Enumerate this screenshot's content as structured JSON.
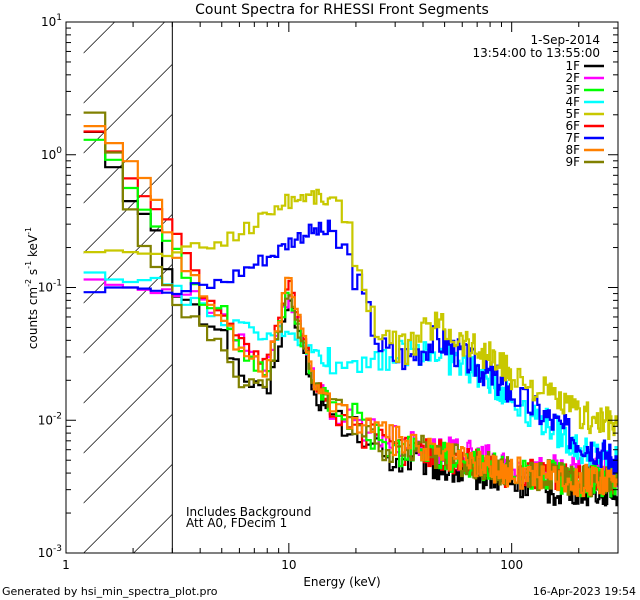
{
  "chart_data": {
    "type": "line",
    "title": "Count Spectra for RHESSI Front Segments",
    "xlabel": "Energy (keV)",
    "ylabel_prefix": "counts cm",
    "ylabel_sup1": "-2",
    "ylabel_mid1": " s",
    "ylabel_sup2": "-1",
    "ylabel_mid2": " keV",
    "ylabel_sup3": "-1",
    "xscale": "log",
    "yscale": "log",
    "xlim": [
      1,
      300
    ],
    "ylim": [
      0.001,
      10
    ],
    "x_major_ticks": [
      {
        "value": 1,
        "label": "1"
      },
      {
        "value": 10,
        "label": "10"
      },
      {
        "value": 100,
        "label": "100"
      }
    ],
    "y_major_ticks": [
      {
        "value": 0.001,
        "base": "10",
        "exp": "-3"
      },
      {
        "value": 0.01,
        "base": "10",
        "exp": "-2"
      },
      {
        "value": 0.1,
        "base": "10",
        "exp": "-1"
      },
      {
        "value": 1,
        "base": "10",
        "exp": "0"
      },
      {
        "value": 10,
        "base": "10",
        "exp": "1"
      }
    ],
    "excluded_region": {
      "x_from": 1.2,
      "x_to": 3.0,
      "style": "hatched"
    },
    "annotations": {
      "date": "1-Sep-2014",
      "time_range": "13:54:00 to 13:55:00",
      "note_line1": "Includes Background",
      "note_line2": "Att A0, FDecim 1",
      "footer_left": "Generated by hsi_min_spectra_plot.pro",
      "footer_right": "16-Apr-2023 19:54"
    },
    "legend_position": "top-right",
    "series": [
      {
        "name": "1F",
        "color": "#000000",
        "points": [
          [
            1.2,
            1.7
          ],
          [
            1.5,
            1.3
          ],
          [
            1.8,
            0.5
          ],
          [
            2.1,
            0.4
          ],
          [
            2.5,
            0.3
          ],
          [
            3,
            0.1
          ],
          [
            4,
            0.06
          ],
          [
            5,
            0.05
          ],
          [
            6,
            0.022
          ],
          [
            8,
            0.015
          ],
          [
            10,
            0.08
          ],
          [
            11,
            0.05
          ],
          [
            13,
            0.015
          ],
          [
            16,
            0.01
          ],
          [
            20,
            0.008
          ],
          [
            25,
            0.006
          ],
          [
            30,
            0.005
          ],
          [
            40,
            0.005
          ],
          [
            60,
            0.004
          ],
          [
            80,
            0.004
          ],
          [
            100,
            0.0035
          ],
          [
            150,
            0.003
          ],
          [
            200,
            0.003
          ],
          [
            300,
            0.003
          ]
        ]
      },
      {
        "name": "2F",
        "color": "#ff00ff",
        "points": [
          [
            1.2,
            0.12
          ],
          [
            1.5,
            0.11
          ],
          [
            1.8,
            0.1
          ],
          [
            2.1,
            0.1
          ],
          [
            2.5,
            0.09
          ],
          [
            3,
            0.1
          ],
          [
            4,
            0.08
          ],
          [
            5,
            0.06
          ],
          [
            6,
            0.04
          ],
          [
            8,
            0.025
          ],
          [
            10,
            0.09
          ],
          [
            11,
            0.06
          ],
          [
            13,
            0.02
          ],
          [
            16,
            0.012
          ],
          [
            20,
            0.01
          ],
          [
            25,
            0.008
          ],
          [
            30,
            0.007
          ],
          [
            40,
            0.006
          ],
          [
            60,
            0.0055
          ],
          [
            80,
            0.005
          ],
          [
            100,
            0.0045
          ],
          [
            150,
            0.0042
          ],
          [
            200,
            0.004
          ],
          [
            300,
            0.004
          ]
        ]
      },
      {
        "name": "3F",
        "color": "#00ff00",
        "points": [
          [
            1.2,
            1.4
          ],
          [
            1.5,
            1.2
          ],
          [
            1.8,
            0.7
          ],
          [
            2.1,
            0.45
          ],
          [
            2.5,
            0.3
          ],
          [
            3,
            0.2
          ],
          [
            4,
            0.08
          ],
          [
            5,
            0.07
          ],
          [
            6,
            0.035
          ],
          [
            8,
            0.022
          ],
          [
            10,
            0.1
          ],
          [
            11,
            0.05
          ],
          [
            13,
            0.02
          ],
          [
            16,
            0.012
          ],
          [
            20,
            0.01
          ],
          [
            25,
            0.007
          ],
          [
            30,
            0.006
          ],
          [
            40,
            0.0055
          ],
          [
            60,
            0.005
          ],
          [
            80,
            0.0045
          ],
          [
            100,
            0.004
          ],
          [
            150,
            0.0038
          ],
          [
            200,
            0.0035
          ],
          [
            300,
            0.0035
          ]
        ]
      },
      {
        "name": "4F",
        "color": "#00ffff",
        "points": [
          [
            1.2,
            0.14
          ],
          [
            1.5,
            0.12
          ],
          [
            1.8,
            0.11
          ],
          [
            2.1,
            0.11
          ],
          [
            2.5,
            0.12
          ],
          [
            3,
            0.1
          ],
          [
            4,
            0.07
          ],
          [
            5,
            0.06
          ],
          [
            6,
            0.05
          ],
          [
            8,
            0.04
          ],
          [
            10,
            0.05
          ],
          [
            12,
            0.035
          ],
          [
            14,
            0.03
          ],
          [
            17,
            0.025
          ],
          [
            20,
            0.028
          ],
          [
            25,
            0.032
          ],
          [
            30,
            0.03
          ],
          [
            40,
            0.035
          ],
          [
            50,
            0.03
          ],
          [
            60,
            0.026
          ],
          [
            80,
            0.02
          ],
          [
            100,
            0.015
          ],
          [
            150,
            0.009
          ],
          [
            200,
            0.006
          ],
          [
            300,
            0.005
          ]
        ]
      },
      {
        "name": "5F",
        "color": "#c8c800",
        "points": [
          [
            1.2,
            0.18
          ],
          [
            1.5,
            0.19
          ],
          [
            1.8,
            0.19
          ],
          [
            2.1,
            0.18
          ],
          [
            2.5,
            0.18
          ],
          [
            3,
            0.17
          ],
          [
            4,
            0.2
          ],
          [
            5,
            0.22
          ],
          [
            6,
            0.26
          ],
          [
            7,
            0.3
          ],
          [
            8,
            0.36
          ],
          [
            9,
            0.42
          ],
          [
            10,
            0.45
          ],
          [
            12,
            0.5
          ],
          [
            14,
            0.48
          ],
          [
            16,
            0.42
          ],
          [
            18,
            0.3
          ],
          [
            20,
            0.18
          ],
          [
            23,
            0.08
          ],
          [
            26,
            0.04
          ],
          [
            30,
            0.035
          ],
          [
            35,
            0.035
          ],
          [
            40,
            0.045
          ],
          [
            45,
            0.055
          ],
          [
            50,
            0.05
          ],
          [
            60,
            0.04
          ],
          [
            80,
            0.03
          ],
          [
            100,
            0.022
          ],
          [
            150,
            0.015
          ],
          [
            200,
            0.011
          ],
          [
            300,
            0.009
          ]
        ]
      },
      {
        "name": "6F",
        "color": "#ff0000",
        "points": [
          [
            1.2,
            1.6
          ],
          [
            1.5,
            1.4
          ],
          [
            1.8,
            0.8
          ],
          [
            2.1,
            0.55
          ],
          [
            2.5,
            0.4
          ],
          [
            3,
            0.3
          ],
          [
            4,
            0.1
          ],
          [
            5,
            0.07
          ],
          [
            6,
            0.04
          ],
          [
            8,
            0.025
          ],
          [
            10,
            0.11
          ],
          [
            11,
            0.06
          ],
          [
            13,
            0.02
          ],
          [
            16,
            0.012
          ],
          [
            20,
            0.009
          ],
          [
            25,
            0.007
          ],
          [
            30,
            0.006
          ],
          [
            40,
            0.006
          ],
          [
            60,
            0.005
          ],
          [
            80,
            0.0045
          ],
          [
            100,
            0.004
          ],
          [
            150,
            0.0038
          ],
          [
            200,
            0.0035
          ],
          [
            300,
            0.0035
          ]
        ]
      },
      {
        "name": "7F",
        "color": "#0000ff",
        "points": [
          [
            1.2,
            0.085
          ],
          [
            1.5,
            0.1
          ],
          [
            1.8,
            0.1
          ],
          [
            2.1,
            0.1
          ],
          [
            2.5,
            0.095
          ],
          [
            3,
            0.09
          ],
          [
            4,
            0.1
          ],
          [
            5,
            0.11
          ],
          [
            6,
            0.13
          ],
          [
            7,
            0.15
          ],
          [
            8,
            0.17
          ],
          [
            9,
            0.19
          ],
          [
            10,
            0.22
          ],
          [
            12,
            0.26
          ],
          [
            14,
            0.27
          ],
          [
            16,
            0.23
          ],
          [
            18,
            0.19
          ],
          [
            20,
            0.12
          ],
          [
            23,
            0.06
          ],
          [
            26,
            0.035
          ],
          [
            30,
            0.03
          ],
          [
            35,
            0.03
          ],
          [
            40,
            0.035
          ],
          [
            45,
            0.04
          ],
          [
            50,
            0.038
          ],
          [
            60,
            0.03
          ],
          [
            80,
            0.022
          ],
          [
            100,
            0.016
          ],
          [
            150,
            0.01
          ],
          [
            200,
            0.007
          ],
          [
            300,
            0.005
          ]
        ]
      },
      {
        "name": "8F",
        "color": "#ff8000",
        "points": [
          [
            1.2,
            1.8
          ],
          [
            1.5,
            1.5
          ],
          [
            1.8,
            1.0
          ],
          [
            2.1,
            0.8
          ],
          [
            2.5,
            0.5
          ],
          [
            3,
            0.2
          ],
          [
            4,
            0.1
          ],
          [
            5,
            0.06
          ],
          [
            6,
            0.035
          ],
          [
            8,
            0.022
          ],
          [
            10,
            0.13
          ],
          [
            11,
            0.06
          ],
          [
            13,
            0.02
          ],
          [
            16,
            0.013
          ],
          [
            20,
            0.01
          ],
          [
            25,
            0.008
          ],
          [
            30,
            0.007
          ],
          [
            40,
            0.006
          ],
          [
            60,
            0.005
          ],
          [
            80,
            0.0045
          ],
          [
            100,
            0.004
          ],
          [
            150,
            0.004
          ],
          [
            200,
            0.0035
          ],
          [
            300,
            0.0035
          ]
        ]
      },
      {
        "name": "9F",
        "color": "#808000",
        "points": [
          [
            1.2,
            2.4
          ],
          [
            1.5,
            1.8
          ],
          [
            1.8,
            0.6
          ],
          [
            2.1,
            0.25
          ],
          [
            2.5,
            0.15
          ],
          [
            3,
            0.09
          ],
          [
            4,
            0.05
          ],
          [
            5,
            0.035
          ],
          [
            6,
            0.02
          ],
          [
            8,
            0.018
          ],
          [
            10,
            0.1
          ],
          [
            11,
            0.05
          ],
          [
            13,
            0.02
          ],
          [
            16,
            0.012
          ],
          [
            20,
            0.01
          ],
          [
            25,
            0.007
          ],
          [
            30,
            0.006
          ],
          [
            40,
            0.006
          ],
          [
            60,
            0.005
          ],
          [
            80,
            0.0045
          ],
          [
            100,
            0.004
          ],
          [
            150,
            0.0038
          ],
          [
            200,
            0.0035
          ],
          [
            300,
            0.0035
          ]
        ]
      }
    ]
  }
}
